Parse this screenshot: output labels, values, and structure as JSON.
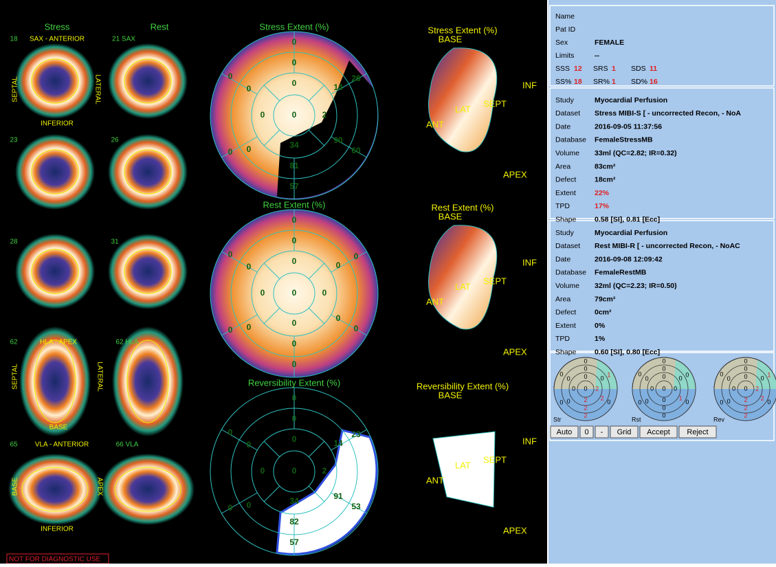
{
  "left": {
    "stress_header": "Stress",
    "rest_header": "Rest",
    "labels": [
      "18",
      "SAX - ANTERIOR",
      "21 SAX",
      "SEPTAL",
      "LATERAL",
      "INFERIOR",
      "23",
      "26",
      "28",
      "31",
      "62",
      "HLA - APEX",
      "62 HLA",
      "SEPTAL",
      "LATERAL",
      "BASE",
      "65",
      "VLA - ANTERIOR",
      "66 VLA",
      "BASE",
      "APEX",
      "INFERIOR"
    ],
    "warning": "NOT FOR DIAGNOSTIC USE"
  },
  "polar_maps": [
    {
      "title": "Stress Extent (%)",
      "values": [
        "0",
        "0",
        "0",
        "0",
        "0",
        "0",
        "0",
        "0",
        "0",
        "26",
        "14",
        "2",
        "90",
        "60",
        "34",
        "81",
        "57"
      ]
    },
    {
      "title": "Rest Extent (%)",
      "values": [
        "0",
        "0",
        "0",
        "0",
        "0",
        "0",
        "0",
        "0",
        "0",
        "0",
        "0",
        "0",
        "0",
        "0",
        "0",
        "0",
        "0"
      ]
    },
    {
      "title": "Reversibility Extent (%)",
      "values": [
        "0",
        "0",
        "0",
        "0",
        "0",
        "0",
        "0",
        "0",
        "0",
        "23",
        "14",
        "2",
        "91",
        "53",
        "34",
        "82",
        "57"
      ]
    }
  ],
  "views": [
    {
      "title": "Stress Extent (%)",
      "labels": [
        "BASE",
        "INF",
        "LAT",
        "SEPT",
        "ANT",
        "APEX"
      ]
    },
    {
      "title": "Rest Extent (%)",
      "labels": [
        "BASE",
        "INF",
        "LAT",
        "SEPT",
        "ANT",
        "APEX"
      ]
    },
    {
      "title": "Reversibility Extent (%)",
      "labels": [
        "BASE",
        "INF",
        "LAT",
        "SEPT",
        "ANT",
        "APEX"
      ]
    }
  ],
  "patient": {
    "rows": [
      {
        "label": "Name"
      },
      {
        "label": "Pat ID"
      },
      {
        "label": "Sex",
        "value": "FEMALE"
      },
      {
        "label": "Limits",
        "value": "--"
      }
    ],
    "scores": [
      {
        "label": "SSS",
        "value": "12"
      },
      {
        "label": "SRS",
        "value": "1"
      },
      {
        "label": "SDS",
        "value": "11"
      },
      {
        "label": "SS%",
        "value": "18"
      },
      {
        "label": "SR%",
        "value": "1"
      },
      {
        "label": "SD%",
        "value": "16"
      }
    ]
  },
  "studies": [
    {
      "rows": [
        {
          "label": "Study",
          "value": "Myocardial Perfusion"
        },
        {
          "label": "Dataset",
          "value": "Stress MIBI-S [ - uncorrected Recon, - NoA"
        },
        {
          "label": "Date",
          "value": "2016-09-05 11:37:56"
        },
        {
          "label": "Database",
          "value": "FemaleStressMB"
        },
        {
          "label": "Volume",
          "value": "33ml (QC=2.82; IR=0.32)"
        },
        {
          "label": "Area",
          "value": "83cm²"
        },
        {
          "label": "Defect",
          "value": "18cm²"
        },
        {
          "label": "Extent",
          "value": "22%",
          "alert": true
        },
        {
          "label": "TPD",
          "value": "17%",
          "alert": true
        },
        {
          "label": "Shape",
          "value": "0.58 [SI], 0.81 [Ecc]"
        }
      ]
    },
    {
      "rows": [
        {
          "label": "Study",
          "value": "Myocardial Perfusion"
        },
        {
          "label": "Dataset",
          "value": "Rest MIBI-R [ - uncorrected Recon, - NoAC"
        },
        {
          "label": "Date",
          "value": "2016-09-08 12:09:42"
        },
        {
          "label": "Database",
          "value": "FemaleRestMB"
        },
        {
          "label": "Volume",
          "value": "32ml (QC=2.23; IR=0.50)"
        },
        {
          "label": "Area",
          "value": "79cm²"
        },
        {
          "label": "Defect",
          "value": "0cm²"
        },
        {
          "label": "Extent",
          "value": "0%"
        },
        {
          "label": "TPD",
          "value": "1%"
        },
        {
          "label": "Shape",
          "value": "0.60 [SI], 0.80 [Ecc]"
        }
      ]
    }
  ],
  "mini_maps": [
    {
      "name": "Str",
      "values": [
        "0",
        "0",
        "0",
        "0",
        "0",
        "0",
        "0",
        "0",
        "0",
        "1",
        "0",
        "2",
        "2",
        "0",
        "2",
        "2",
        "2"
      ]
    },
    {
      "name": "Rst",
      "values": [
        "0",
        "0",
        "0",
        "0",
        "0",
        "0",
        "0",
        "0",
        "0",
        "0",
        "0",
        "0",
        "1",
        "0",
        "0",
        "0",
        "0"
      ]
    },
    {
      "name": "Rev",
      "values": [
        "0",
        "0",
        "0",
        "0",
        "0",
        "0",
        "0",
        "0",
        "0",
        "1",
        "0",
        "2",
        "2",
        "0",
        "2",
        "2",
        "2"
      ]
    }
  ],
  "buttons": [
    "Auto",
    "0",
    "-",
    "Grid",
    "Accept",
    "Reject"
  ]
}
